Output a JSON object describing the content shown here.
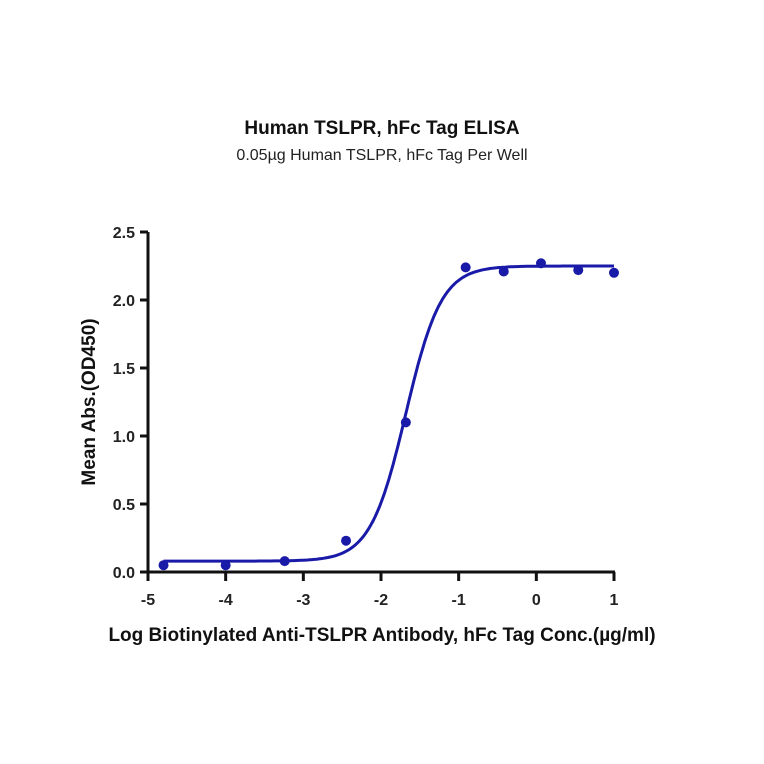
{
  "chart_data": {
    "type": "scatter",
    "title": "Human TSLPR, hFc Tag ELISA",
    "subtitle": "0.05µg Human TSLPR, hFc Tag Per Well",
    "xlabel": "Log Biotinylated Anti-TSLPR Antibody, hFc Tag Conc.(µg/ml)",
    "ylabel": "Mean Abs.(OD450)",
    "xlim": [
      -5,
      1
    ],
    "ylim": [
      0,
      2.5
    ],
    "x_ticks": [
      "-5",
      "-4",
      "-3",
      "-2",
      "-1",
      "0",
      "1"
    ],
    "y_ticks": [
      "0.0",
      "0.5",
      "1.0",
      "1.5",
      "2.0",
      "2.5"
    ],
    "grid": false,
    "legend": null,
    "series": [
      {
        "name": "Human TSLPR, hFc Tag",
        "color": "#1a1aa8",
        "x": [
          -4.8,
          -4.0,
          -3.24,
          -2.45,
          -1.68,
          -0.91,
          -0.42,
          0.06,
          0.54,
          1.0
        ],
        "y": [
          0.05,
          0.05,
          0.08,
          0.23,
          1.1,
          2.24,
          2.21,
          2.27,
          2.22,
          2.2
        ]
      }
    ],
    "fit": {
      "model": "4PL sigmoid",
      "bottom": 0.08,
      "top": 2.25,
      "logEC50": -1.68,
      "hill": 1.9,
      "x_range": [
        -4.8,
        1.0
      ]
    }
  }
}
